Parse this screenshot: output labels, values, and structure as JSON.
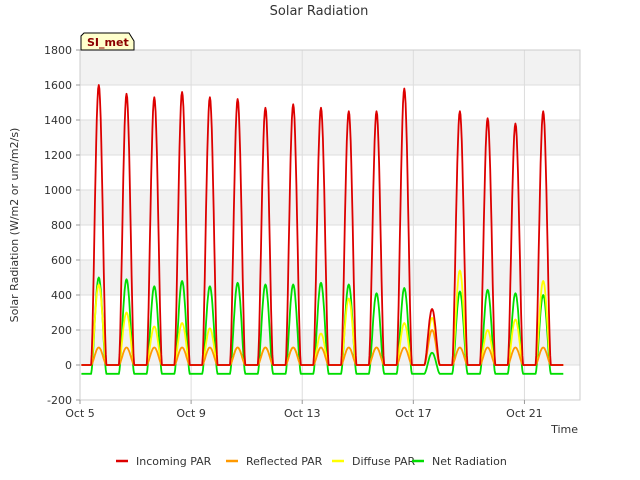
{
  "chart_data": {
    "type": "line",
    "title": "Solar Radiation",
    "xlabel": "Time",
    "ylabel": "Solar Radiation (W/m2 or um/m2/s)",
    "badge": "SI_met",
    "xlim": [
      5,
      23
    ],
    "ylim": [
      -200,
      1800
    ],
    "x_ticks": [
      {
        "value": 5,
        "label": "Oct 5"
      },
      {
        "value": 9,
        "label": "Oct 9"
      },
      {
        "value": 13,
        "label": "Oct 13"
      },
      {
        "value": 17,
        "label": "Oct 17"
      },
      {
        "value": 21,
        "label": "Oct 21"
      }
    ],
    "y_ticks": [
      -200,
      0,
      200,
      400,
      600,
      800,
      1000,
      1200,
      1400,
      1600,
      1800
    ],
    "grid": true,
    "legend_position": "bottom",
    "series": [
      {
        "name": "Incoming PAR",
        "color": "#dd0000",
        "peaks": [
          1600,
          1550,
          1530,
          1560,
          1530,
          1520,
          1470,
          1490,
          1470,
          1450,
          1450,
          1580,
          320,
          1450,
          1410,
          1380,
          1450
        ]
      },
      {
        "name": "Reflected PAR",
        "color": "#ff9900",
        "peaks": [
          100,
          100,
          100,
          100,
          100,
          100,
          100,
          100,
          100,
          100,
          100,
          100,
          200,
          100,
          100,
          100,
          100
        ]
      },
      {
        "name": "Diffuse PAR",
        "color": "#ffff00",
        "peaks": [
          460,
          300,
          220,
          240,
          210,
          100,
          100,
          100,
          180,
          380,
          100,
          240,
          270,
          540,
          200,
          260,
          480
        ]
      },
      {
        "name": "Net Radiation",
        "color": "#00dd00",
        "peaks": [
          500,
          490,
          450,
          480,
          450,
          470,
          460,
          460,
          470,
          460,
          410,
          440,
          70,
          420,
          430,
          410,
          400
        ],
        "night": -50
      }
    ],
    "day_starts": [
      5.4,
      6.4,
      7.4,
      8.4,
      9.4,
      10.4,
      11.4,
      12.4,
      13.4,
      14.4,
      15.4,
      16.4,
      17.4,
      18.4,
      19.4,
      20.4,
      21.4
    ]
  }
}
